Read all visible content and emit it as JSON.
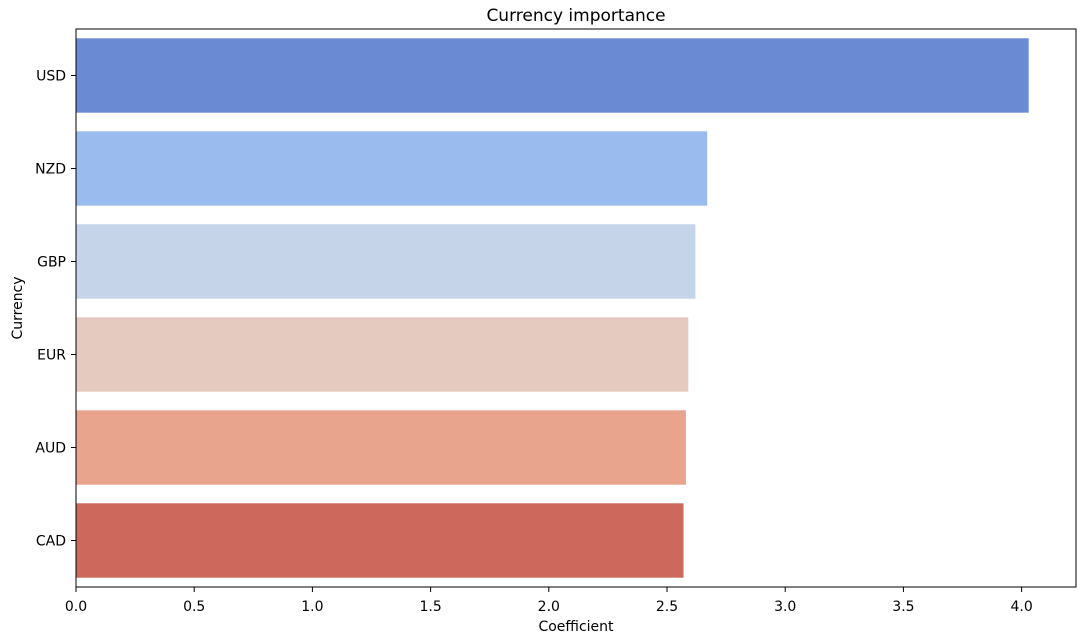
{
  "chart_data": {
    "type": "bar",
    "orientation": "horizontal",
    "title": "Currency importance",
    "xlabel": "Coefficient",
    "ylabel": "Currency",
    "categories": [
      "USD",
      "NZD",
      "GBP",
      "EUR",
      "AUD",
      "CAD"
    ],
    "values": [
      4.03,
      2.67,
      2.62,
      2.59,
      2.58,
      2.57
    ],
    "colors": [
      "#6a8bd4",
      "#9abbee",
      "#c5d4e8",
      "#e5cbbf",
      "#e9a48e",
      "#cd685d"
    ],
    "xlim": [
      0,
      4.23
    ],
    "xticks": [
      0.0,
      0.5,
      1.0,
      1.5,
      2.0,
      2.5,
      3.0,
      3.5,
      4.0
    ],
    "xtick_labels": [
      "0.0",
      "0.5",
      "1.0",
      "1.5",
      "2.0",
      "2.5",
      "3.0",
      "3.5",
      "4.0"
    ],
    "grid": false,
    "legend": "none"
  }
}
